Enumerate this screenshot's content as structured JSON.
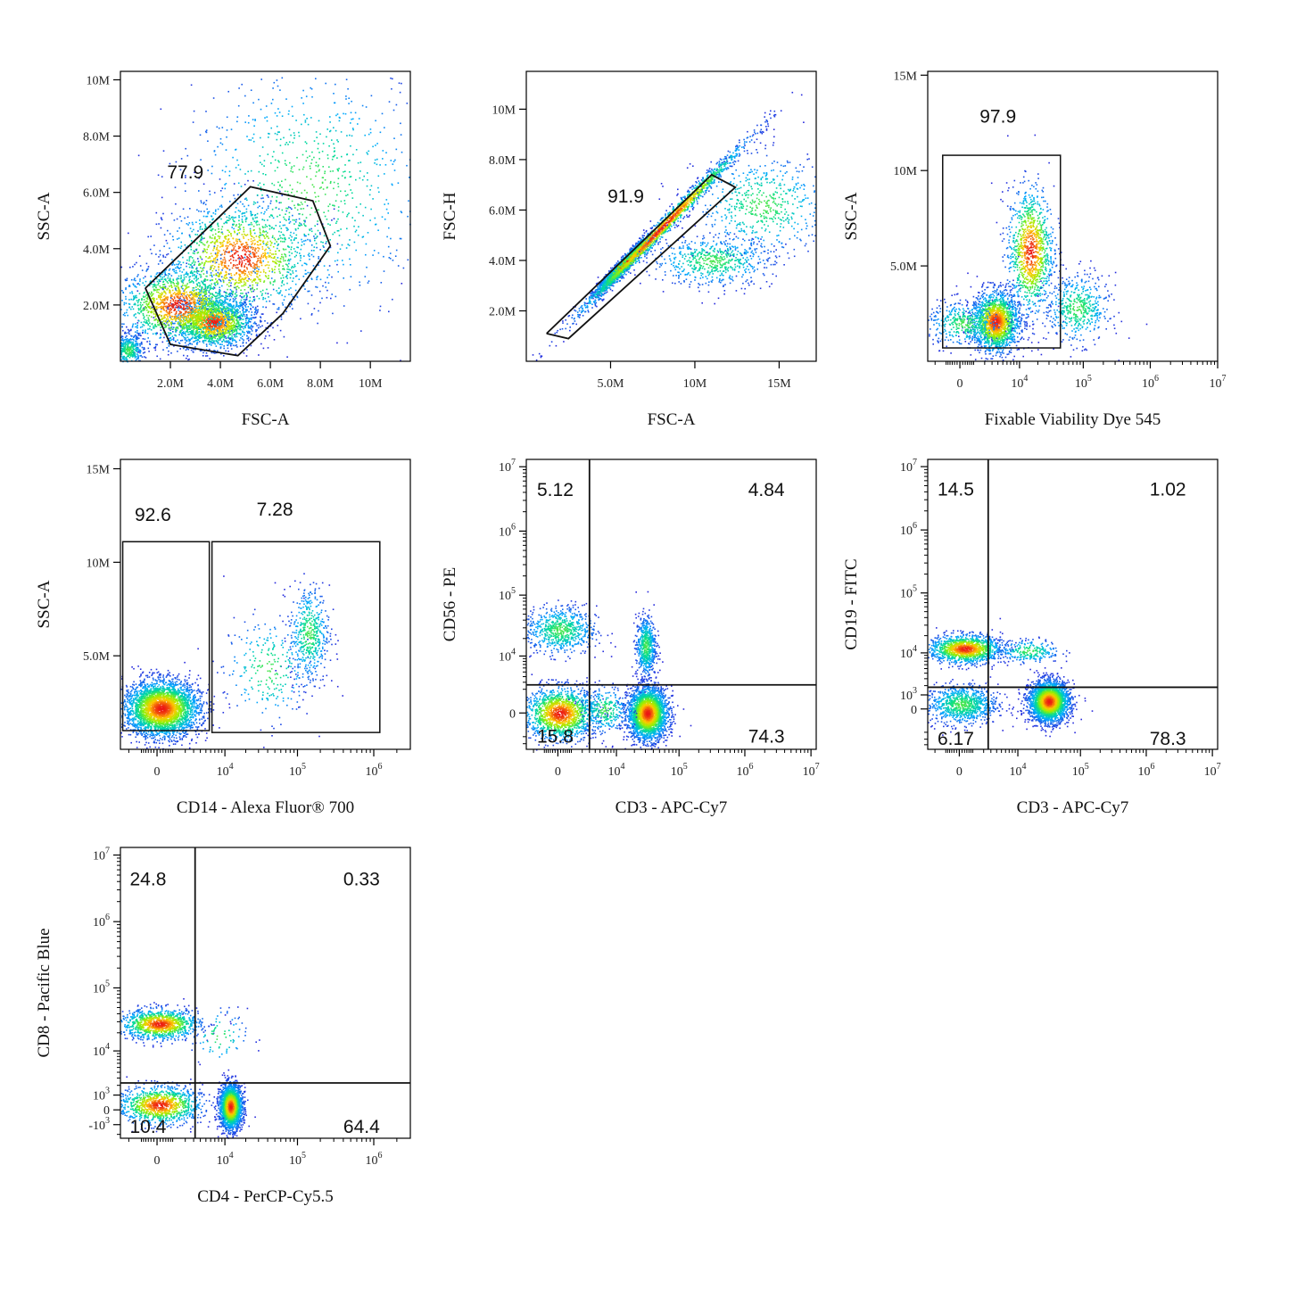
{
  "chart_data": [
    {
      "id": "p1",
      "type": "scatter",
      "xlabel": "FSC-A",
      "ylabel": "SSC-A",
      "xscale": "linear",
      "yscale": "linear",
      "xlim": [
        0,
        11.6
      ],
      "ylim": [
        0,
        10.3
      ],
      "xticks": [
        {
          "v": 2,
          "label": "2.0M"
        },
        {
          "v": 4,
          "label": "4.0M"
        },
        {
          "v": 6,
          "label": "6.0M"
        },
        {
          "v": 8,
          "label": "8.0M"
        },
        {
          "v": 10,
          "label": "10M"
        }
      ],
      "yticks": [
        {
          "v": 2,
          "label": "2.0M"
        },
        {
          "v": 4,
          "label": "4.0M"
        },
        {
          "v": 6,
          "label": "6.0M"
        },
        {
          "v": 8,
          "label": "8.0M"
        },
        {
          "v": 10,
          "label": "10M"
        }
      ],
      "clusters": [
        {
          "x": 3.7,
          "y": 1.4,
          "sx": 0.8,
          "sy": 0.45,
          "n": 1700
        },
        {
          "x": 2.3,
          "y": 2.0,
          "sx": 1.2,
          "sy": 0.7,
          "n": 1500
        },
        {
          "x": 4.8,
          "y": 3.7,
          "sx": 1.5,
          "sy": 1.0,
          "n": 1400
        },
        {
          "x": 0.3,
          "y": 0.4,
          "sx": 0.3,
          "sy": 0.3,
          "n": 400
        },
        {
          "x": 7.5,
          "y": 6.2,
          "sx": 2.5,
          "sy": 2.2,
          "n": 900
        }
      ],
      "gates": [
        {
          "type": "polygon",
          "points": [
            [
              1.0,
              2.6
            ],
            [
              2.0,
              0.6
            ],
            [
              4.7,
              0.2
            ],
            [
              6.5,
              1.7
            ],
            [
              8.4,
              4.1
            ],
            [
              7.7,
              5.7
            ],
            [
              5.2,
              6.2
            ],
            [
              1.0,
              2.6
            ]
          ]
        }
      ],
      "labels": [
        {
          "text": "77.9",
          "x": 2.6,
          "y": 6.5
        }
      ]
    },
    {
      "id": "p2",
      "type": "scatter",
      "xlabel": "FSC-A",
      "ylabel": "FSC-H",
      "xscale": "linear",
      "yscale": "linear",
      "xlim": [
        0,
        17.2
      ],
      "ylim": [
        0,
        11.5
      ],
      "xticks": [
        {
          "v": 5,
          "label": "5.0M"
        },
        {
          "v": 10,
          "label": "10M"
        },
        {
          "v": 15,
          "label": "15M"
        }
      ],
      "yticks": [
        {
          "v": 2,
          "label": "2.0M"
        },
        {
          "v": 4,
          "label": "4.0M"
        },
        {
          "v": 6,
          "label": "6.0M"
        },
        {
          "v": 8,
          "label": "8.0M"
        },
        {
          "v": 10,
          "label": "10M"
        }
      ],
      "clusters": [
        {
          "x": 5.8,
          "y": 3.9,
          "sx": 0.8,
          "sy": 0.15,
          "n": 1600,
          "diag": 0.68
        },
        {
          "x": 8.0,
          "y": 5.3,
          "sx": 2.6,
          "sy": 0.2,
          "n": 1600,
          "diag": 0.68
        },
        {
          "x": 11.0,
          "y": 4.0,
          "sx": 1.8,
          "sy": 0.5,
          "n": 600
        },
        {
          "x": 14.0,
          "y": 6.2,
          "sx": 2.0,
          "sy": 1.0,
          "n": 600
        }
      ],
      "gates": [
        {
          "type": "polygon",
          "points": [
            [
              1.2,
              1.1
            ],
            [
              11.0,
              7.4
            ],
            [
              12.4,
              6.9
            ],
            [
              2.5,
              0.9
            ],
            [
              1.2,
              1.1
            ]
          ]
        }
      ],
      "labels": [
        {
          "text": "91.9",
          "x": 5.9,
          "y": 6.3
        }
      ]
    },
    {
      "id": "p3",
      "type": "scatter",
      "xlabel": "Fixable Viability Dye 545",
      "ylabel": "SSC-A",
      "xscale": "biexp",
      "yscale": "linear",
      "xlim": [
        -3000,
        10000000
      ],
      "ylim": [
        0,
        15.2
      ],
      "xticks": [
        {
          "v": 0,
          "label": "0"
        },
        {
          "v": 10000,
          "base": "10",
          "exp": "4"
        },
        {
          "v": 100000,
          "base": "10",
          "exp": "5"
        },
        {
          "v": 1000000,
          "base": "10",
          "exp": "6"
        },
        {
          "v": 10000000,
          "base": "10",
          "exp": "7"
        }
      ],
      "yticks": [
        {
          "v": 5,
          "label": "5.0M"
        },
        {
          "v": 10,
          "label": "10M"
        },
        {
          "v": 15,
          "label": "15M"
        }
      ],
      "clusters": [
        {
          "x": 3500,
          "y": 2.1,
          "sx": 2500,
          "sy": 0.8,
          "n": 1700
        },
        {
          "x": 15000,
          "y": 5.8,
          "sx": 8000,
          "sy": 1.7,
          "n": 1100
        },
        {
          "x": 200,
          "y": 2.0,
          "sx": 1500,
          "sy": 0.6,
          "n": 400
        },
        {
          "x": 80000,
          "y": 2.8,
          "sx": 60000,
          "sy": 0.9,
          "n": 500
        }
      ],
      "gates": [
        {
          "type": "rect",
          "x0": -1200,
          "x1": 45000,
          "y0": 0.7,
          "y1": 10.8
        }
      ],
      "labels": [
        {
          "text": "97.9",
          "x": 4000,
          "y": 12.5
        }
      ]
    },
    {
      "id": "p4",
      "type": "scatter",
      "xlabel": "CD14 - Alexa Fluor® 700",
      "ylabel": "SSC-A",
      "xscale": "biexp",
      "yscale": "linear",
      "xlim": [
        -3000,
        3000000
      ],
      "ylim": [
        0,
        15.5
      ],
      "xticks": [
        {
          "v": 0,
          "label": "0"
        },
        {
          "v": 10000,
          "base": "10",
          "exp": "4"
        },
        {
          "v": 100000,
          "base": "10",
          "exp": "5"
        },
        {
          "v": 1000000,
          "base": "10",
          "exp": "6"
        }
      ],
      "yticks": [
        {
          "v": 5,
          "label": "5.0M"
        },
        {
          "v": 10,
          "label": "10M"
        },
        {
          "v": 15,
          "label": "15M"
        }
      ],
      "clusters": [
        {
          "x": 200,
          "y": 2.2,
          "sx": 1300,
          "sy": 0.75,
          "n": 3200
        },
        {
          "x": 140000,
          "y": 6.2,
          "sx": 50000,
          "sy": 1.3,
          "n": 500
        },
        {
          "x": 40000,
          "y": 4.3,
          "sx": 40000,
          "sy": 1.4,
          "n": 250
        }
      ],
      "gates": [
        {
          "type": "rect",
          "x0": -2700,
          "x1": 5700,
          "y0": 1.0,
          "y1": 11.1
        },
        {
          "type": "rect",
          "x0": 6300,
          "x1": 1200000,
          "y0": 0.9,
          "y1": 11.1
        }
      ],
      "labels": [
        {
          "text": "92.6",
          "x": -200,
          "y": 12.2
        },
        {
          "text": "7.28",
          "x": 50000,
          "y": 12.5
        }
      ]
    },
    {
      "id": "p5",
      "type": "scatter",
      "xlabel": "CD3 - APC-Cy7",
      "ylabel": "CD56 - PE",
      "xscale": "biexp",
      "yscale": "biexp",
      "xlim": [
        -3000,
        12000000
      ],
      "ylim": [
        -4000,
        13000000
      ],
      "xticks": [
        {
          "v": 0,
          "label": "0"
        },
        {
          "v": 10000,
          "base": "10",
          "exp": "4"
        },
        {
          "v": 100000,
          "base": "10",
          "exp": "5"
        },
        {
          "v": 1000000,
          "base": "10",
          "exp": "6"
        },
        {
          "v": 10000000,
          "base": "10",
          "exp": "7"
        }
      ],
      "yticks": [
        {
          "v": 0,
          "label": "0"
        },
        {
          "v": 10000,
          "base": "10",
          "exp": "4"
        },
        {
          "v": 100000,
          "base": "10",
          "exp": "5"
        },
        {
          "v": 1000000,
          "base": "10",
          "exp": "6"
        },
        {
          "v": 10000000,
          "base": "10",
          "exp": "7"
        }
      ],
      "clusters": [
        {
          "x": 32000,
          "y": 0,
          "sx": 14000,
          "sy": 900,
          "n": 2600
        },
        {
          "x": 100,
          "y": 0,
          "sx": 1400,
          "sy": 900,
          "n": 1500
        },
        {
          "x": 100,
          "y": 28000,
          "sx": 1400,
          "sy": 16000,
          "n": 700
        },
        {
          "x": 30000,
          "y": 15000,
          "sx": 6000,
          "sy": 12000,
          "n": 600
        },
        {
          "x": 6000,
          "y": 200,
          "sx": 4000,
          "sy": 900,
          "n": 300
        }
      ],
      "gates": [
        {
          "type": "quad",
          "x": 3000,
          "y": 2600
        }
      ],
      "labels": [
        {
          "text": "5.12",
          "x": -1600,
          "y": 3500000,
          "anchor": "start"
        },
        {
          "text": "4.84",
          "x": 4000000,
          "y": 3500000,
          "anchor": "end"
        },
        {
          "text": "15.8",
          "x": -1600,
          "y": -2800,
          "anchor": "start"
        },
        {
          "text": "74.3",
          "x": 4000000,
          "y": -2800,
          "anchor": "end"
        }
      ]
    },
    {
      "id": "p6",
      "type": "scatter",
      "xlabel": "CD3 - APC-Cy7",
      "ylabel": "CD19 - FITC",
      "xscale": "biexp",
      "yscale": "biexp",
      "xlim": [
        -3000,
        12000000
      ],
      "ylim": [
        -5000,
        13000000
      ],
      "xticks": [
        {
          "v": 0,
          "label": "0"
        },
        {
          "v": 10000,
          "base": "10",
          "exp": "4"
        },
        {
          "v": 100000,
          "base": "10",
          "exp": "5"
        },
        {
          "v": 1000000,
          "base": "10",
          "exp": "6"
        },
        {
          "v": 10000000,
          "base": "10",
          "exp": "7"
        }
      ],
      "yticks": [
        {
          "v": 0,
          "label": "0"
        },
        {
          "v": 1000,
          "base": "10",
          "exp": "3"
        },
        {
          "v": 10000,
          "base": "10",
          "exp": "4"
        },
        {
          "v": 100000,
          "base": "10",
          "exp": "5"
        },
        {
          "v": 1000000,
          "base": "10",
          "exp": "6"
        },
        {
          "v": 10000000,
          "base": "10",
          "exp": "7"
        }
      ],
      "clusters": [
        {
          "x": 32000,
          "y": 500,
          "sx": 14000,
          "sy": 900,
          "n": 2600
        },
        {
          "x": 300,
          "y": 12000,
          "sx": 1600,
          "sy": 4000,
          "n": 1300
        },
        {
          "x": 100,
          "y": 300,
          "sx": 1400,
          "sy": 800,
          "n": 900
        },
        {
          "x": 15000,
          "y": 11000,
          "sx": 12000,
          "sy": 3000,
          "n": 250
        }
      ],
      "gates": [
        {
          "type": "quad",
          "x": 2600,
          "y": 1800
        }
      ],
      "labels": [
        {
          "text": "14.5",
          "x": -1700,
          "y": 3500000,
          "anchor": "start"
        },
        {
          "text": "1.02",
          "x": 4000000,
          "y": 3500000,
          "anchor": "end"
        },
        {
          "text": "6.17",
          "x": -1700,
          "y": -4000,
          "anchor": "start"
        },
        {
          "text": "78.3",
          "x": 4000000,
          "y": -4000,
          "anchor": "end"
        }
      ]
    },
    {
      "id": "p7",
      "type": "scatter",
      "xlabel": "CD4 - PerCP-Cy5.5",
      "ylabel": "CD8 - Pacific Blue",
      "xscale": "biexp",
      "yscale": "biexp",
      "xlim": [
        -3000,
        3000000
      ],
      "ylim": [
        -2500,
        13000000
      ],
      "xticks": [
        {
          "v": 0,
          "label": "0"
        },
        {
          "v": 10000,
          "base": "10",
          "exp": "4"
        },
        {
          "v": 100000,
          "base": "10",
          "exp": "5"
        },
        {
          "v": 1000000,
          "base": "10",
          "exp": "6"
        }
      ],
      "yticks": [
        {
          "v": -1000,
          "base": "-10",
          "exp": "3"
        },
        {
          "v": 0,
          "label": "0"
        },
        {
          "v": 1000,
          "base": "10",
          "exp": "3"
        },
        {
          "v": 10000,
          "base": "10",
          "exp": "4"
        },
        {
          "v": 100000,
          "base": "10",
          "exp": "5"
        },
        {
          "v": 1000000,
          "base": "10",
          "exp": "6"
        },
        {
          "v": 10000000,
          "base": "10",
          "exp": "7"
        }
      ],
      "clusters": [
        {
          "x": 12000,
          "y": 200,
          "sx": 2500,
          "sy": 800,
          "n": 2000
        },
        {
          "x": 100,
          "y": 28000,
          "sx": 1300,
          "sy": 9000,
          "n": 1100
        },
        {
          "x": 100,
          "y": 300,
          "sx": 1400,
          "sy": 700,
          "n": 1100
        },
        {
          "x": 8000,
          "y": 18000,
          "sx": 5000,
          "sy": 12000,
          "n": 80
        }
      ],
      "gates": [
        {
          "type": "quad",
          "x": 3200,
          "y": 2300
        }
      ],
      "labels": [
        {
          "text": "24.8",
          "x": -1900,
          "y": 3500000,
          "anchor": "start"
        },
        {
          "text": "0.33",
          "x": 1200000,
          "y": 3500000,
          "anchor": "end"
        },
        {
          "text": "10.4",
          "x": -1900,
          "y": -1800,
          "anchor": "start"
        },
        {
          "text": "64.4",
          "x": 1200000,
          "y": -1800,
          "anchor": "end"
        }
      ]
    }
  ]
}
